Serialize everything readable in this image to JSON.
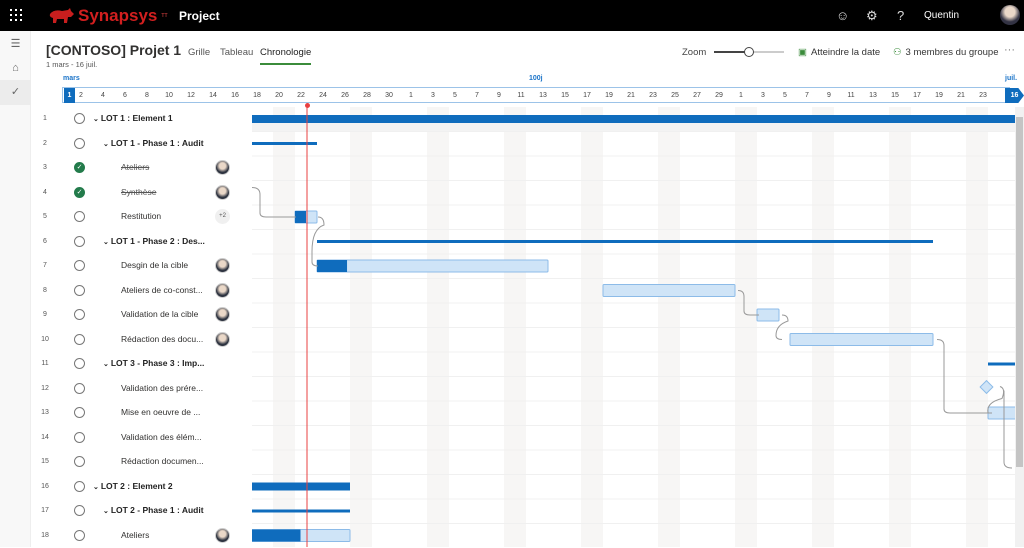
{
  "topbar": {
    "brand": "Synapsys",
    "brand_mark": "TT",
    "app": "Project",
    "user": "Quentin",
    "icons": [
      "waffle-icon",
      "smiley-icon",
      "gear-icon",
      "help-icon"
    ]
  },
  "rail": {
    "icons": [
      "hamburger-icon",
      "home-icon",
      "check-icon"
    ]
  },
  "header": {
    "title": "[CONTOSO] Projet 1",
    "dates": "1 mars - 16 juil.",
    "tabs": [
      {
        "label": "Grille"
      },
      {
        "label": "Tableau"
      },
      {
        "label": "Chronologie",
        "selected": true
      }
    ],
    "zoom_label": "Zoom",
    "zoom_level_pct": 45,
    "goto_date": "Atteindre la date",
    "members": "3 membres du groupe",
    "more": "···"
  },
  "timeline": {
    "months": [
      {
        "label": "mars"
      },
      {
        "label": "100j"
      },
      {
        "label": "juil."
      }
    ],
    "start_marker": "1",
    "end_marker": "16",
    "ticks": [
      "2",
      "4",
      "6",
      "8",
      "10",
      "12",
      "14",
      "16",
      "18",
      "20",
      "22",
      "24",
      "26",
      "28",
      "30",
      "1",
      "3",
      "5",
      "7",
      "9",
      "11",
      "13",
      "15",
      "17",
      "19",
      "21",
      "23",
      "25",
      "27",
      "29",
      "1",
      "3",
      "5",
      "7",
      "9",
      "11",
      "13",
      "15",
      "17",
      "19",
      "21",
      "23"
    ],
    "today": "03-23",
    "accent": "#0f6cbd",
    "today_color": "#e84040"
  },
  "tasks": [
    {
      "n": "1",
      "name": "LOT 1 : Element 1",
      "level": 0,
      "group": true,
      "done": false,
      "start": "03-18",
      "end": "06-30",
      "type": "summary"
    },
    {
      "n": "2",
      "name": "LOT 1 - Phase 1 : Audit",
      "level": 1,
      "group": true,
      "done": false,
      "start": "03-18",
      "end": "03-23",
      "type": "summary"
    },
    {
      "n": "3",
      "name": "Ateliers",
      "level": 2,
      "done": true,
      "avatar": true
    },
    {
      "n": "4",
      "name": "Synthèse",
      "level": 2,
      "done": true,
      "avatar": true
    },
    {
      "n": "5",
      "name": "Restitution",
      "level": 2,
      "done": false,
      "assignees": "+2",
      "start": "03-22",
      "end": "03-23",
      "progress": 50,
      "type": "task"
    },
    {
      "n": "6",
      "name": "LOT 1 - Phase 2 : Des...",
      "level": 1,
      "group": true,
      "done": false,
      "start": "03-24",
      "end": "05-18",
      "type": "summary"
    },
    {
      "n": "7",
      "name": "Desgin de la cible",
      "level": 2,
      "done": false,
      "avatar": true,
      "start": "03-24",
      "end": "04-13",
      "progress": 13,
      "type": "task"
    },
    {
      "n": "8",
      "name": "Ateliers de co-const...",
      "level": 2,
      "done": false,
      "avatar": true,
      "start": "04-19",
      "end": "04-30",
      "progress": 0,
      "type": "task"
    },
    {
      "n": "9",
      "name": "Validation de la cible",
      "level": 2,
      "done": false,
      "avatar": true,
      "start": "05-03",
      "end": "05-04",
      "progress": 0,
      "type": "task"
    },
    {
      "n": "10",
      "name": "Rédaction des docu...",
      "level": 2,
      "done": false,
      "avatar": true,
      "start": "05-06",
      "end": "05-18",
      "progress": 0,
      "type": "task"
    },
    {
      "n": "11",
      "name": "LOT 3 - Phase 3 : Imp...",
      "level": 1,
      "group": true,
      "done": false,
      "start": "05-24",
      "end": "06-30",
      "type": "summary"
    },
    {
      "n": "12",
      "name": "Validation des prére...",
      "level": 2,
      "done": false,
      "start": "05-24",
      "type": "milestone"
    },
    {
      "n": "13",
      "name": "Mise en oeuvre de ...",
      "level": 2,
      "done": false,
      "start": "05-24",
      "end": "06-30",
      "progress": 0,
      "type": "task"
    },
    {
      "n": "14",
      "name": "Validation des élém...",
      "level": 2,
      "done": false
    },
    {
      "n": "15",
      "name": "Rédaction documen...",
      "level": 2,
      "done": false
    },
    {
      "n": "16",
      "name": "LOT 2 : Element 2",
      "level": 0,
      "group": true,
      "done": false,
      "start": "03-18",
      "end": "03-26",
      "type": "summary"
    },
    {
      "n": "17",
      "name": "LOT 2 - Phase 1 : Audit",
      "level": 1,
      "group": true,
      "done": false,
      "start": "03-18",
      "end": "03-26",
      "type": "summary"
    },
    {
      "n": "18",
      "name": "Ateliers",
      "level": 2,
      "done": false,
      "avatar": true,
      "start": "03-18",
      "end": "03-26",
      "progress": 50,
      "type": "task"
    }
  ]
}
